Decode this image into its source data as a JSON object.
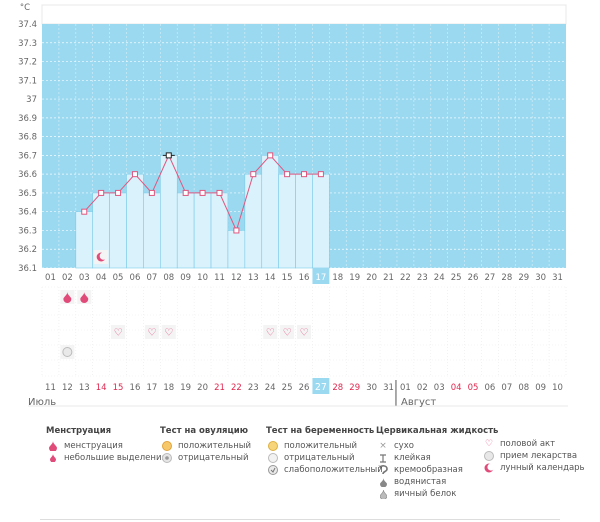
{
  "colors": {
    "sky": "#9bd9f0",
    "bar": "#d9f2fc",
    "bar_border": "#7ccbe8",
    "line": "#e0577f",
    "highlight_day": "#9bd9f0",
    "pink": "#e04b7a",
    "axis_text": "#666666"
  },
  "chart_data": {
    "type": "line",
    "unit_label": "°C",
    "ylim": [
      36.1,
      37.4
    ],
    "yticks": [
      "37.4",
      "37.3",
      "37.2",
      "37.1",
      "37",
      "36.9",
      "36.8",
      "36.7",
      "36.6",
      "36.5",
      "36.4",
      "36.3",
      "36.2",
      "36.1"
    ],
    "cycle_days": [
      "01",
      "02",
      "03",
      "04",
      "05",
      "06",
      "07",
      "08",
      "09",
      "10",
      "11",
      "12",
      "13",
      "14",
      "15",
      "16",
      "17",
      "18",
      "19",
      "20",
      "21",
      "22",
      "23",
      "24",
      "25",
      "26",
      "27",
      "28",
      "29",
      "30",
      "31"
    ],
    "calendar_dates": [
      "11",
      "12",
      "13",
      "14",
      "15",
      "16",
      "17",
      "18",
      "19",
      "20",
      "21",
      "22",
      "23",
      "24",
      "25",
      "26",
      "27",
      "28",
      "29",
      "30",
      "31",
      "01",
      "02",
      "03",
      "04",
      "05",
      "06",
      "07",
      "08",
      "09",
      "10"
    ],
    "calendar_red": [
      false,
      false,
      false,
      true,
      true,
      false,
      false,
      false,
      false,
      false,
      true,
      true,
      false,
      false,
      false,
      false,
      false,
      true,
      true,
      false,
      false,
      false,
      false,
      false,
      true,
      true,
      false,
      false,
      false,
      false,
      false
    ],
    "current_day_index": 16,
    "series": [
      {
        "values": [
          null,
          null,
          36.4,
          36.5,
          36.5,
          36.6,
          36.5,
          36.7,
          36.5,
          36.5,
          36.5,
          36.3,
          36.6,
          36.7,
          36.6,
          36.6,
          36.6,
          null,
          null,
          null,
          null,
          null,
          null,
          null,
          null,
          null,
          null,
          null,
          null,
          null,
          null
        ]
      }
    ],
    "ovulation_day_index": 7,
    "months": [
      "Июль",
      "Август"
    ]
  },
  "markers": {
    "menstruation_days": [
      1,
      2
    ],
    "moon_days": [
      3
    ],
    "sex_days": [
      4,
      6,
      7,
      13,
      14,
      15
    ],
    "pregnancy_test_days": [
      1
    ]
  },
  "legend": {
    "menstruation": {
      "title": "Менструация",
      "items": [
        "менструация",
        "небольшие выделения"
      ]
    },
    "ovulation": {
      "title": "Тест на овуляцию",
      "items": [
        "положительный",
        "отрицательный"
      ]
    },
    "pregnancy": {
      "title": "Тест на беременность",
      "items": [
        "положительный",
        "отрицательный",
        "слабоположительный"
      ]
    },
    "cervical": {
      "title": "Цервикальная жидкость",
      "items": [
        "сухо",
        "клейкая",
        "кремообразная",
        "водянистая",
        "яичный белок"
      ]
    },
    "other": {
      "items": [
        "половой акт",
        "прием лекарства",
        "лунный календарь"
      ]
    }
  }
}
